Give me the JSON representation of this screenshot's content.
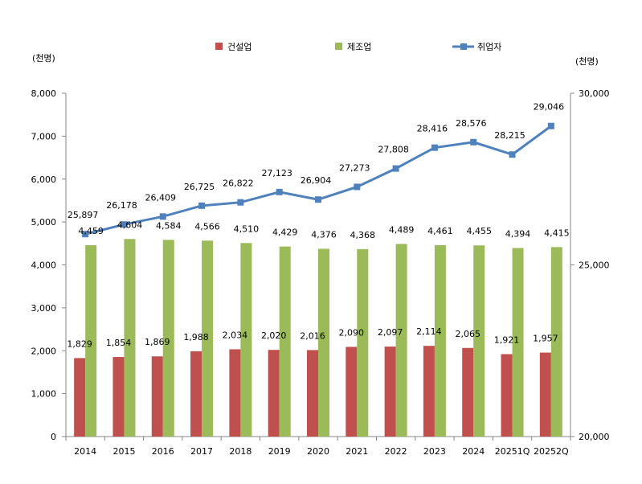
{
  "chart_data": {
    "type": "bar+line",
    "categories": [
      "2014",
      "2015",
      "2016",
      "2017",
      "2018",
      "2019",
      "2020",
      "2021",
      "2022",
      "2023",
      "2024",
      "20251Q",
      "20252Q"
    ],
    "series": [
      {
        "name": "건설업",
        "type": "bar",
        "axis": "left",
        "color": "#c0504d",
        "values": [
          1829,
          1854,
          1869,
          1988,
          2034,
          2020,
          2016,
          2090,
          2097,
          2114,
          2065,
          1921,
          1957
        ]
      },
      {
        "name": "제조업",
        "type": "bar",
        "axis": "left",
        "color": "#9bbb59",
        "values": [
          4459,
          4604,
          4584,
          4566,
          4510,
          4429,
          4376,
          4368,
          4489,
          4461,
          4455,
          4394,
          4415
        ]
      },
      {
        "name": "취업자",
        "type": "line",
        "axis": "right",
        "color": "#4f81bd",
        "marker": "square",
        "values": [
          25897,
          26178,
          26409,
          26725,
          26822,
          27123,
          26904,
          27273,
          27808,
          28416,
          28576,
          28215,
          29046
        ]
      }
    ],
    "ylabel": "(천명)",
    "y2label": "(천명)",
    "ylim": [
      0,
      8000
    ],
    "yticks": [
      "0",
      "1,000",
      "2,000",
      "3,000",
      "4,000",
      "5,000",
      "6,000",
      "7,000",
      "8,000"
    ],
    "y2lim": [
      20000,
      30000
    ],
    "y2ticks": [
      "20,000",
      "25,000",
      "30,000"
    ],
    "grid": false,
    "legend": "top",
    "data_labels": true
  }
}
